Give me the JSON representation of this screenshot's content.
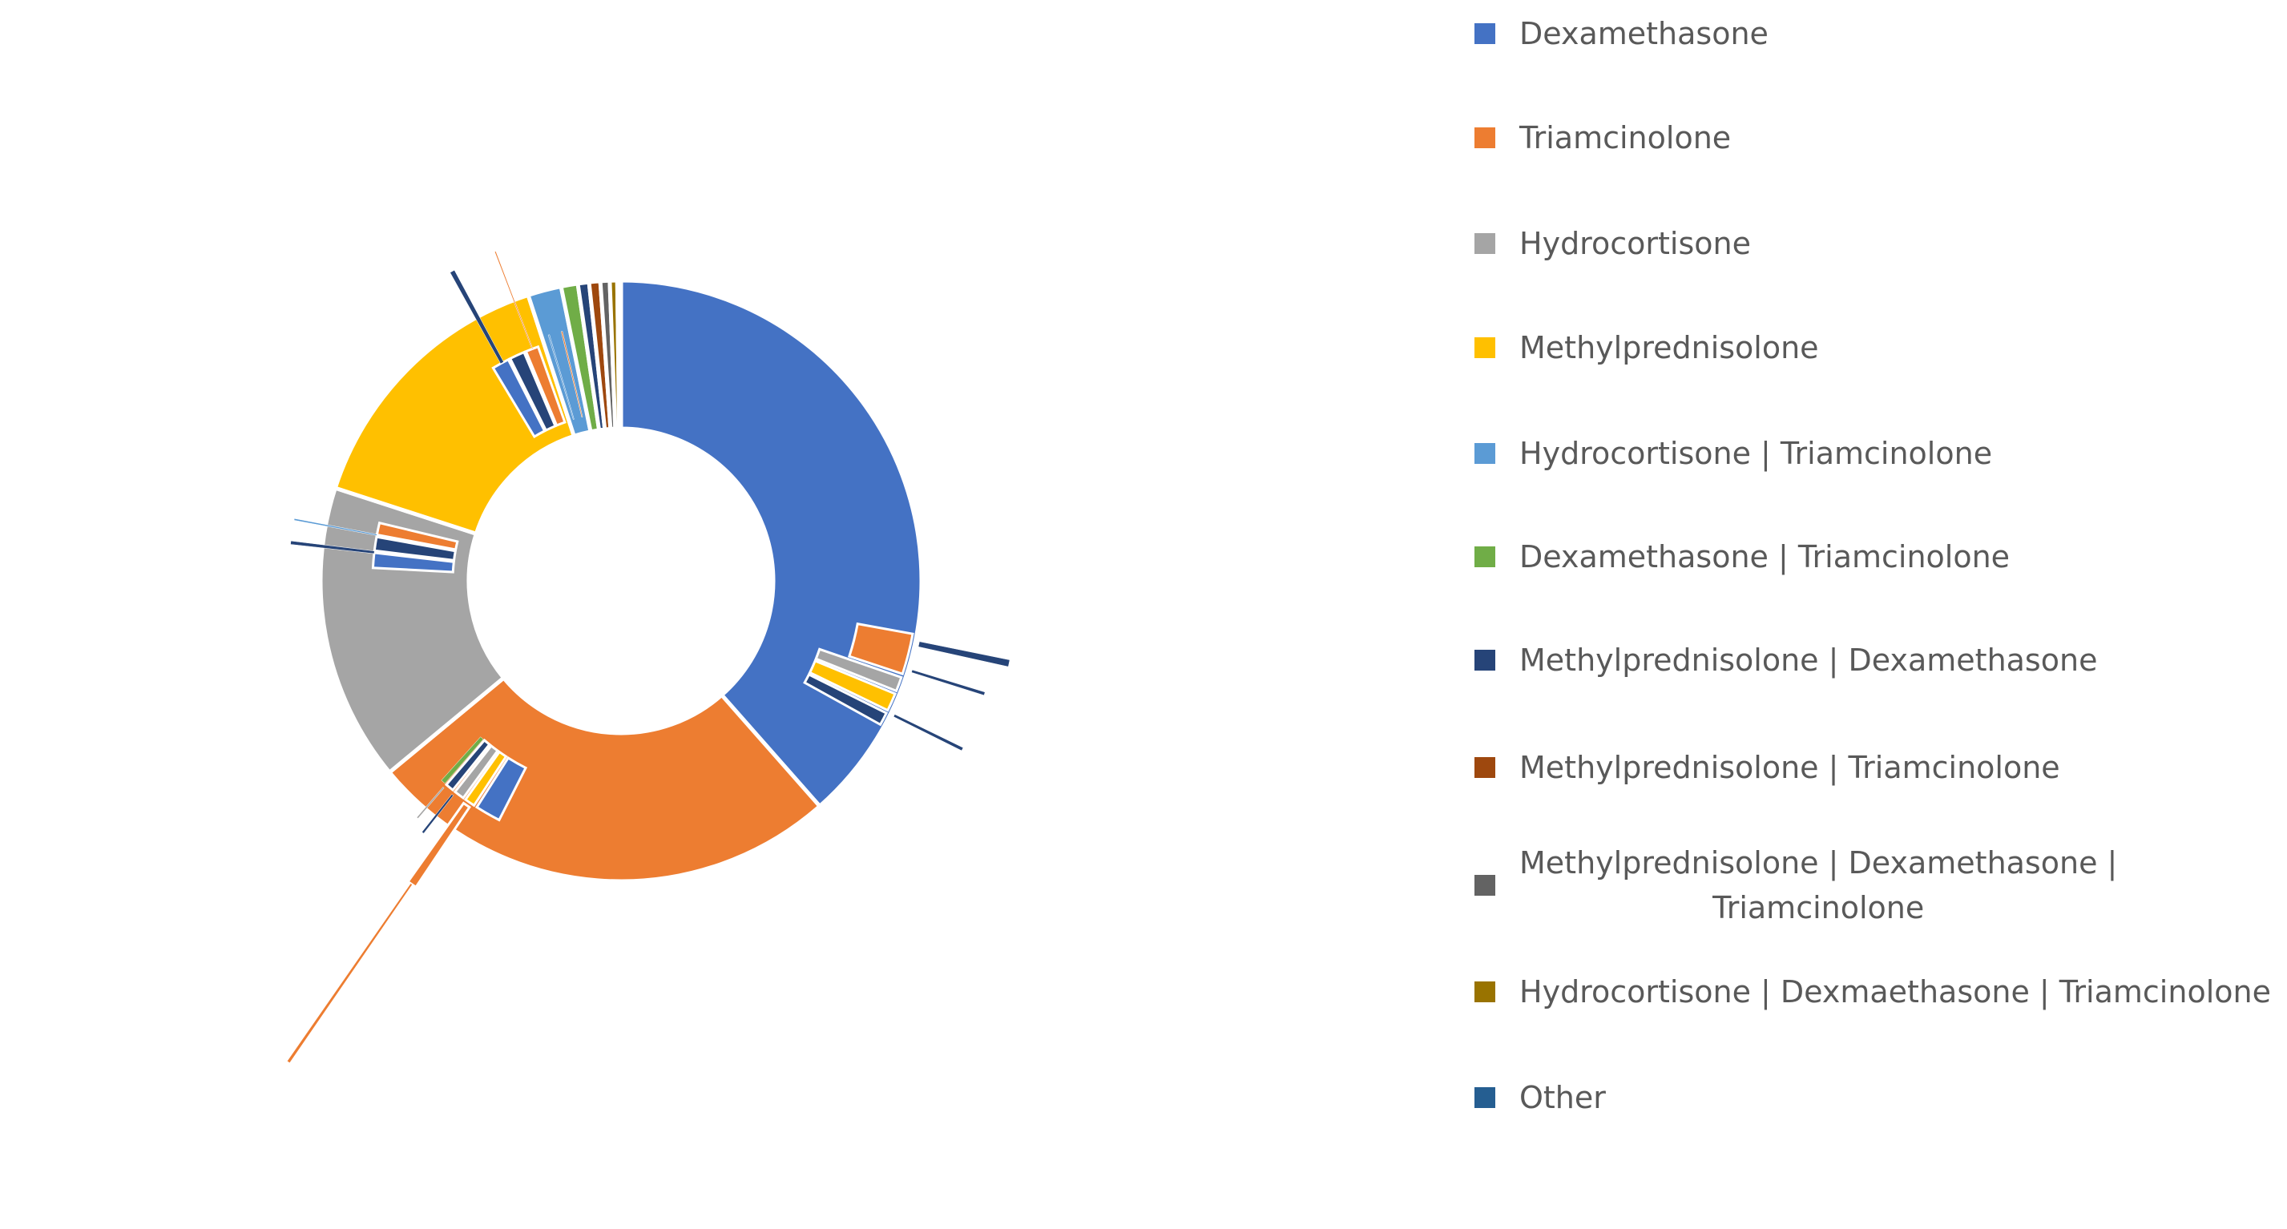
{
  "chart_data": {
    "type": "sunburst",
    "title": "",
    "legend_position": "right",
    "inner_ring": [
      {
        "name": "Dexamethasone",
        "value": 38.5,
        "color": "#4472C4"
      },
      {
        "name": "Triamcinolone",
        "value": 25.5,
        "color": "#ED7D31"
      },
      {
        "name": "Hydrocortisone",
        "value": 16,
        "color": "#A5A5A5"
      },
      {
        "name": "Methylprednisolone",
        "value": 15,
        "color": "#FFC000"
      },
      {
        "name": "Hydrocortisone | Triamcinolone",
        "value": 1.8,
        "color": "#5B9BD5"
      },
      {
        "name": "Dexamethasone | Triamcinolone",
        "value": 0.9,
        "color": "#70AD47"
      },
      {
        "name": "Methylprednisolone | Dexamethasone",
        "value": 0.6,
        "color": "#264478"
      },
      {
        "name": "Methylprednisolone | Triamcinolone",
        "value": 0.6,
        "color": "#9E480E"
      },
      {
        "name": "Methylprednisolone | Dexamethasone | Triamcinolone",
        "value": 0.5,
        "color": "#636363"
      },
      {
        "name": "Hydrocortisone | Dexmaethasone | Triamcinolone",
        "value": 0.4,
        "color": "#997300"
      },
      {
        "name": "Other",
        "value": 0.2,
        "color": "#255E91"
      }
    ],
    "outer_segments": [
      {
        "start": 100.3,
        "span": 8.0,
        "r0": 300,
        "r1": 370,
        "color": "#ED7D31"
      },
      {
        "start": 109.0,
        "span": 2.8,
        "r0": 262,
        "r1": 370,
        "color": "#A5A5A5"
      },
      {
        "start": 112.4,
        "span": 3.5,
        "r0": 262,
        "r1": 370,
        "color": "#FFC000"
      },
      {
        "start": 116.5,
        "span": 2.5,
        "r0": 262,
        "r1": 370,
        "color": "#264478"
      },
      {
        "start": 101.5,
        "span": 1.0,
        "r0": 380,
        "r1": 495,
        "color": "#264478"
      },
      {
        "start": 107.0,
        "span": 0.5,
        "r0": 380,
        "r1": 475,
        "color": "#264478"
      },
      {
        "start": 116.0,
        "span": 0.5,
        "r0": 380,
        "r1": 475,
        "color": "#264478"
      },
      {
        "start": 207.0,
        "span": 5.5,
        "r0": 262,
        "r1": 335,
        "color": "#4472C4"
      },
      {
        "start": 213.2,
        "span": 2.2,
        "r0": 262,
        "r1": 335,
        "color": "#FFC000"
      },
      {
        "start": 216.0,
        "span": 2.2,
        "r0": 262,
        "r1": 335,
        "color": "#A5A5A5"
      },
      {
        "start": 218.8,
        "span": 1.8,
        "r0": 262,
        "r1": 335,
        "color": "#264478"
      },
      {
        "start": 221.0,
        "span": 1.0,
        "r0": 262,
        "r1": 335,
        "color": "#70AD47"
      },
      {
        "start": 213.8,
        "span": 1.5,
        "r0": 340,
        "r1": 460,
        "color": "#ED7D31"
      },
      {
        "start": 218.0,
        "span": 0.4,
        "r0": 340,
        "r1": 400,
        "color": "#264478"
      },
      {
        "start": 220.5,
        "span": 0.3,
        "r0": 340,
        "r1": 390,
        "color": "#A5A5A5"
      },
      {
        "start": 214.5,
        "span": 0.3,
        "r0": 460,
        "r1": 730,
        "color": "#ED7D31"
      },
      {
        "start": 273.0,
        "span": 3.5,
        "r0": 210,
        "r1": 310,
        "color": "#4472C4"
      },
      {
        "start": 277.0,
        "span": 3.2,
        "r0": 210,
        "r1": 310,
        "color": "#264478"
      },
      {
        "start": 280.7,
        "span": 2.8,
        "r0": 210,
        "r1": 310,
        "color": "#ED7D31"
      },
      {
        "start": 276.3,
        "span": 0.6,
        "r0": 310,
        "r1": 415,
        "color": "#264478"
      },
      {
        "start": 280.5,
        "span": 0.3,
        "r0": 310,
        "r1": 415,
        "color": "#5B9BD5"
      },
      {
        "start": 329.0,
        "span": 4.0,
        "r0": 210,
        "r1": 310,
        "color": "#4472C4"
      },
      {
        "start": 333.5,
        "span": 3.5,
        "r0": 210,
        "r1": 310,
        "color": "#264478"
      },
      {
        "start": 337.5,
        "span": 3.0,
        "r0": 210,
        "r1": 310,
        "color": "#ED7D31"
      },
      {
        "start": 331.0,
        "span": 0.8,
        "r0": 310,
        "r1": 440,
        "color": "#264478"
      },
      {
        "start": 339.0,
        "span": 0.2,
        "r0": 310,
        "r1": 440,
        "color": "#ED7D31"
      },
      {
        "start": 343.5,
        "span": 0.3,
        "r0": 210,
        "r1": 320,
        "color": "#5B9BD5"
      },
      {
        "start": 346.5,
        "span": 0.3,
        "r0": 210,
        "r1": 320,
        "color": "#ED7D31"
      }
    ]
  },
  "legend": {
    "items": [
      {
        "lines": [
          "Dexamethasone"
        ],
        "color": "#4472C4"
      },
      {
        "lines": [
          "Triamcinolone"
        ],
        "color": "#ED7D31"
      },
      {
        "lines": [
          "Hydrocortisone"
        ],
        "color": "#A5A5A5"
      },
      {
        "lines": [
          "Methylprednisolone"
        ],
        "color": "#FFC000"
      },
      {
        "lines": [
          "Hydrocortisone | Triamcinolone"
        ],
        "color": "#5B9BD5"
      },
      {
        "lines": [
          "Dexamethasone | Triamcinolone"
        ],
        "color": "#70AD47"
      },
      {
        "lines": [
          "Methylprednisolone | Dexamethasone"
        ],
        "color": "#264478"
      },
      {
        "lines": [
          "Methylprednisolone | Triamcinolone"
        ],
        "color": "#9E480E"
      },
      {
        "lines": [
          "Methylprednisolone | Dexamethasone |",
          "Triamcinolone"
        ],
        "color": "#636363"
      },
      {
        "lines": [
          "Hydrocortisone | Dexmaethasone | Triamcinolone"
        ],
        "color": "#997300"
      },
      {
        "lines": [
          "Other"
        ],
        "color": "#255E91"
      }
    ]
  }
}
